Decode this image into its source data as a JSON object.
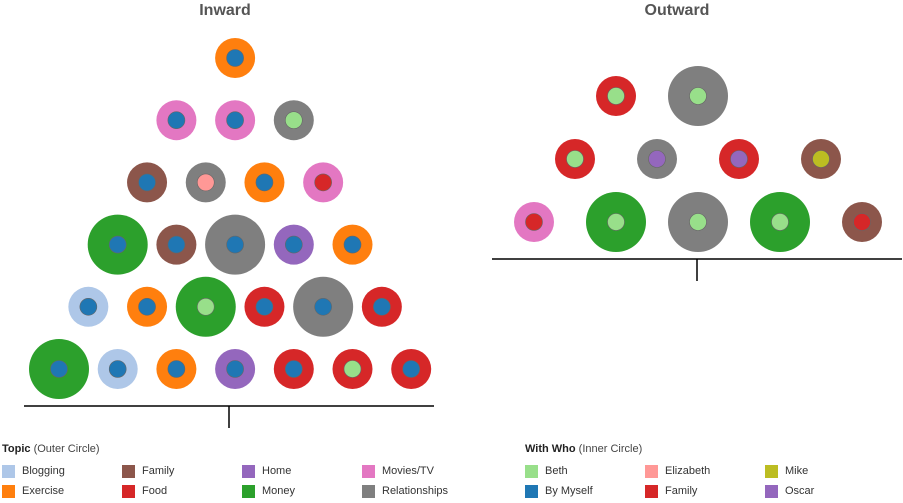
{
  "chart_data": {
    "type": "scatter",
    "encoding": "bubble dot plot: outer circle color = topic, inner circle color = with who, outer size = relative size",
    "panels": [
      {
        "title": "Inward",
        "points": [
          {
            "col": 1,
            "level": 1,
            "size": 3,
            "topic": "Money",
            "who": "By Myself"
          },
          {
            "col": 2,
            "level": 1,
            "size": 2,
            "topic": "Blogging",
            "who": "By Myself"
          },
          {
            "col": 3,
            "level": 1,
            "size": 2,
            "topic": "Exercise",
            "who": "By Myself"
          },
          {
            "col": 4,
            "level": 1,
            "size": 2,
            "topic": "Home",
            "who": "By Myself"
          },
          {
            "col": 5,
            "level": 1,
            "size": 2,
            "topic": "Food",
            "who": "By Myself"
          },
          {
            "col": 6,
            "level": 1,
            "size": 2,
            "topic": "Food",
            "who": "Beth"
          },
          {
            "col": 7,
            "level": 1,
            "size": 2,
            "topic": "Food",
            "who": "By Myself"
          },
          {
            "col": 1.5,
            "level": 2,
            "size": 2,
            "topic": "Blogging",
            "who": "By Myself"
          },
          {
            "col": 2.5,
            "level": 2,
            "size": 2,
            "topic": "Exercise",
            "who": "By Myself"
          },
          {
            "col": 3.5,
            "level": 2,
            "size": 3,
            "topic": "Money",
            "who": "Beth"
          },
          {
            "col": 4.5,
            "level": 2,
            "size": 2,
            "topic": "Food",
            "who": "By Myself"
          },
          {
            "col": 5.5,
            "level": 2,
            "size": 3,
            "topic": "Relationships",
            "who": "By Myself"
          },
          {
            "col": 6.5,
            "level": 2,
            "size": 2,
            "topic": "Food",
            "who": "By Myself"
          },
          {
            "col": 2,
            "level": 3,
            "size": 3,
            "topic": "Money",
            "who": "By Myself"
          },
          {
            "col": 3,
            "level": 3,
            "size": 2,
            "topic": "Family",
            "who": "By Myself"
          },
          {
            "col": 4,
            "level": 3,
            "size": 3,
            "topic": "Relationships",
            "who": "By Myself"
          },
          {
            "col": 5,
            "level": 3,
            "size": 2,
            "topic": "Home",
            "who": "By Myself"
          },
          {
            "col": 6,
            "level": 3,
            "size": 2,
            "topic": "Exercise",
            "who": "By Myself"
          },
          {
            "col": 2.5,
            "level": 4,
            "size": 2,
            "topic": "Family",
            "who": "By Myself"
          },
          {
            "col": 3.5,
            "level": 4,
            "size": 2,
            "topic": "Relationships",
            "who": "Elizabeth"
          },
          {
            "col": 4.5,
            "level": 4,
            "size": 2,
            "topic": "Exercise",
            "who": "By Myself"
          },
          {
            "col": 5.5,
            "level": 4,
            "size": 2,
            "topic": "Movies/TV",
            "who": "Family"
          },
          {
            "col": 3,
            "level": 5,
            "size": 2,
            "topic": "Movies/TV",
            "who": "By Myself"
          },
          {
            "col": 4,
            "level": 5,
            "size": 2,
            "topic": "Movies/TV",
            "who": "By Myself"
          },
          {
            "col": 5,
            "level": 5,
            "size": 2,
            "topic": "Relationships",
            "who": "Beth"
          },
          {
            "col": 4,
            "level": 6,
            "size": 2,
            "topic": "Exercise",
            "who": "By Myself"
          }
        ]
      },
      {
        "title": "Outward",
        "points": [
          {
            "col": 1,
            "level": 1,
            "size": 2,
            "topic": "Movies/TV",
            "who": "Family"
          },
          {
            "col": 2,
            "level": 1,
            "size": 3,
            "topic": "Money",
            "who": "Beth"
          },
          {
            "col": 3,
            "level": 1,
            "size": 3,
            "topic": "Relationships",
            "who": "Beth"
          },
          {
            "col": 4,
            "level": 1,
            "size": 3,
            "topic": "Money",
            "who": "Beth"
          },
          {
            "col": 5,
            "level": 1,
            "size": 2,
            "topic": "Family",
            "who": "Family"
          },
          {
            "col": 1.5,
            "level": 2,
            "size": 2,
            "topic": "Food",
            "who": "Beth"
          },
          {
            "col": 2.5,
            "level": 2,
            "size": 2,
            "topic": "Relationships",
            "who": "Oscar"
          },
          {
            "col": 3.5,
            "level": 2,
            "size": 2,
            "topic": "Food",
            "who": "Oscar"
          },
          {
            "col": 4.5,
            "level": 2,
            "size": 2,
            "topic": "Family",
            "who": "Mike"
          },
          {
            "col": 2,
            "level": 3,
            "size": 2,
            "topic": "Food",
            "who": "Beth"
          },
          {
            "col": 3,
            "level": 3,
            "size": 3,
            "topic": "Relationships",
            "who": "Beth"
          }
        ]
      }
    ],
    "legend_topic": {
      "title": "Topic",
      "subtitle": "(Outer Circle)",
      "items": [
        {
          "label": "Blogging",
          "color": "#aec7e8"
        },
        {
          "label": "Exercise",
          "color": "#ff7f0e"
        },
        {
          "label": "Family",
          "color": "#8c564b"
        },
        {
          "label": "Food",
          "color": "#d62728"
        },
        {
          "label": "Home",
          "color": "#9467bd"
        },
        {
          "label": "Money",
          "color": "#2ca02c"
        },
        {
          "label": "Movies/TV",
          "color": "#e377c2"
        },
        {
          "label": "Relationships",
          "color": "#7f7f7f"
        }
      ]
    },
    "legend_who": {
      "title": "With Who",
      "subtitle": "(Inner Circle)",
      "items": [
        {
          "label": "Beth",
          "color": "#98df8a"
        },
        {
          "label": "By Myself",
          "color": "#1f77b4"
        },
        {
          "label": "Elizabeth",
          "color": "#ff9896"
        },
        {
          "label": "Family",
          "color": "#d62728"
        },
        {
          "label": "Mike",
          "color": "#bcbd22"
        },
        {
          "label": "Oscar",
          "color": "#9467bd"
        }
      ]
    }
  }
}
